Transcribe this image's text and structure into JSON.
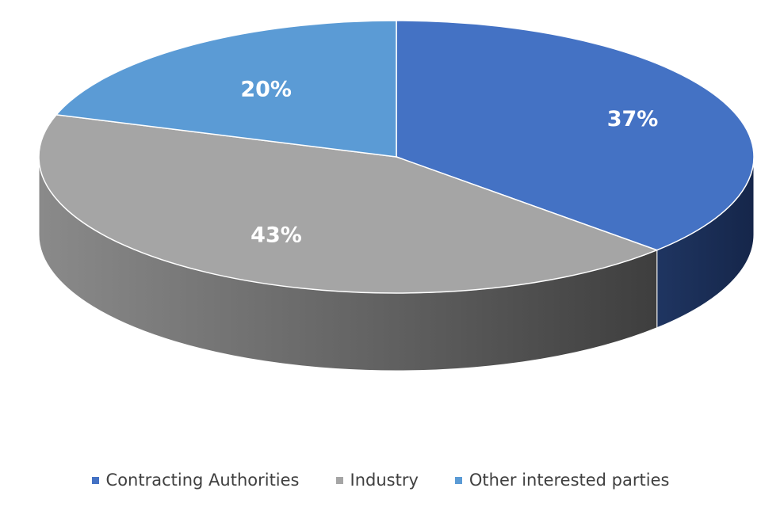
{
  "chart_data": {
    "type": "pie",
    "style": "3d",
    "title": "",
    "slices": [
      {
        "name": "Contracting Authorities",
        "value": 37,
        "label": "37%",
        "color": "#4472C4"
      },
      {
        "name": "Industry",
        "value": 43,
        "label": "43%",
        "color": "#A5A5A5"
      },
      {
        "name": "Other interested parties",
        "value": 20,
        "label": "20%",
        "color": "#5B9BD5"
      }
    ],
    "legend_position": "bottom"
  }
}
